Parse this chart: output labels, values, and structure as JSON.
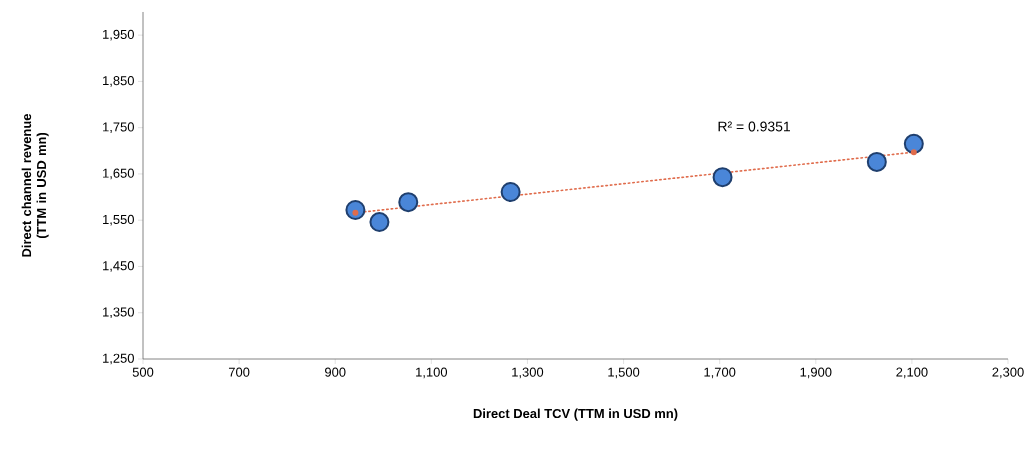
{
  "chart_data": {
    "type": "scatter",
    "xlabel": "Direct Deal TCV (TTM in USD mn)",
    "ylabel": "Direct channel revenue (TTM in USD mn)",
    "annotations": [
      "R² = 0.9351"
    ],
    "xlim": [
      500,
      2300
    ],
    "ylim": [
      1250,
      2000
    ],
    "xticks": [
      {
        "value": 500,
        "label": "500"
      },
      {
        "value": 700,
        "label": "700"
      },
      {
        "value": 900,
        "label": "900"
      },
      {
        "value": 1100,
        "label": "1,100"
      },
      {
        "value": 1300,
        "label": "1,300"
      },
      {
        "value": 1500,
        "label": "1,500"
      },
      {
        "value": 1700,
        "label": "1,700"
      },
      {
        "value": 1900,
        "label": "1,900"
      },
      {
        "value": 2100,
        "label": "2,100"
      },
      {
        "value": 2300,
        "label": "2,300"
      }
    ],
    "yticks": [
      {
        "value": 1250,
        "label": "1,250"
      },
      {
        "value": 1350,
        "label": "1,350"
      },
      {
        "value": 1450,
        "label": "1,450"
      },
      {
        "value": 1550,
        "label": "1,550"
      },
      {
        "value": 1650,
        "label": "1,650"
      },
      {
        "value": 1750,
        "label": "1,750"
      },
      {
        "value": 1850,
        "label": "1,850"
      },
      {
        "value": 1950,
        "label": "1,950"
      }
    ],
    "grid": false,
    "series": [
      {
        "marker": "circle",
        "color": "#4a86d8",
        "x": [
          942,
          992,
          1052,
          1265,
          1706,
          2027,
          2104
        ],
        "values": [
          1572,
          1546,
          1589,
          1611,
          1643,
          1676,
          1715
        ]
      },
      {
        "type": "line",
        "line_style": "dotted",
        "marker": "circle",
        "color": "#e06c4c",
        "x": [
          942,
          2104
        ],
        "values": [
          1566,
          1697
        ]
      }
    ]
  }
}
